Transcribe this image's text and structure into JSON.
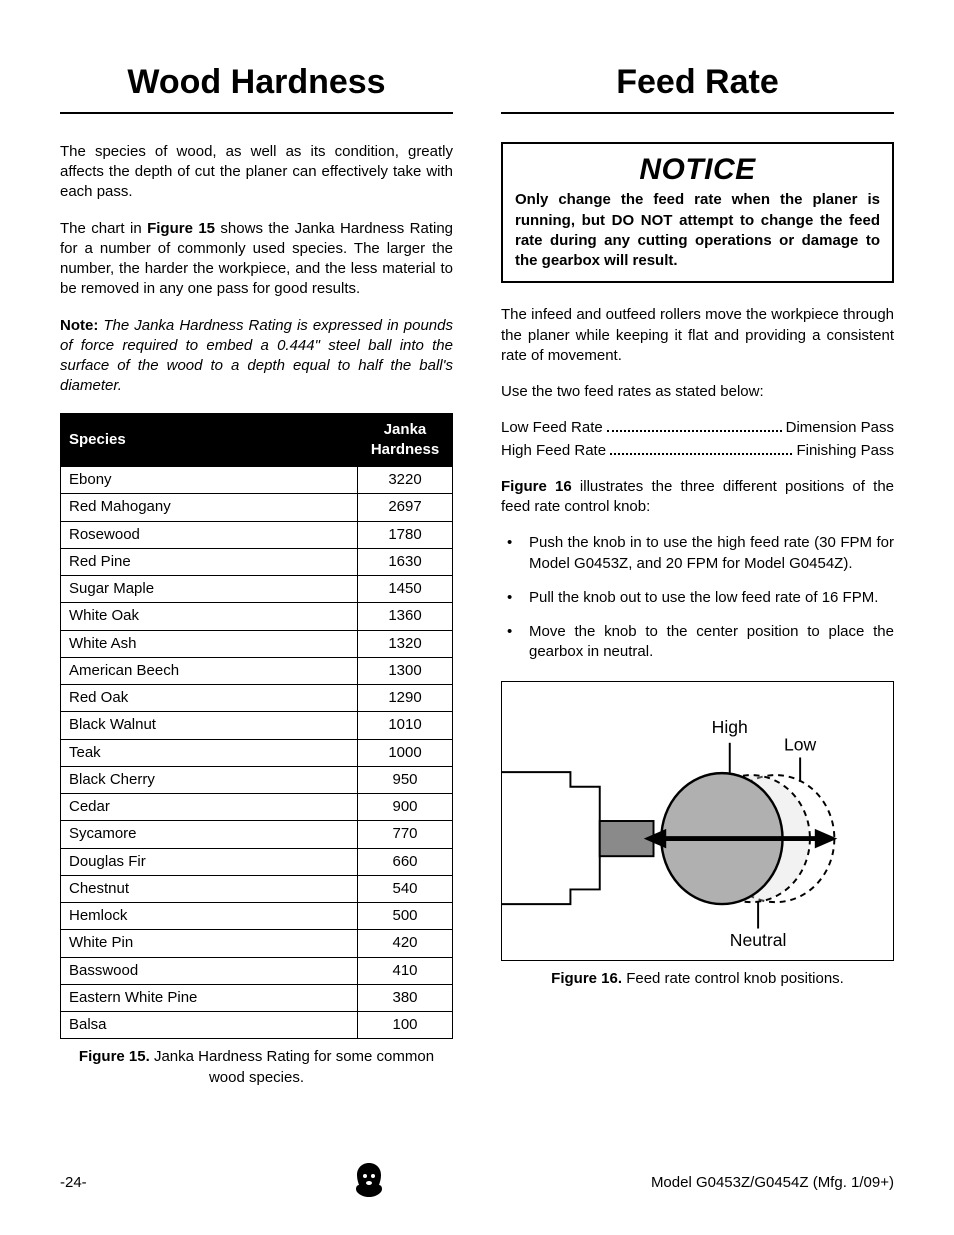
{
  "left": {
    "title": "Wood Hardness",
    "para1": "The species of wood, as well as its condition, greatly affects the depth of cut the planer can effectively take with each pass.",
    "para2_a": "The chart in ",
    "para2_b_bold": "Figure 15",
    "para2_c": " shows the Janka Hardness Rating for a number of commonly used species. The larger the number, the harder the workpiece, and the less material to be removed in any one pass for good results.",
    "note_label": "Note:",
    "note_body": " The Janka Hardness Rating is expressed in pounds of force required to embed a 0.444\" steel ball into the surface of the wood to a depth equal to half the ball's diameter.",
    "table": {
      "col1": "Species",
      "col2_l1": "Janka",
      "col2_l2": "Hardness",
      "rows": [
        {
          "s": "Ebony",
          "h": "3220"
        },
        {
          "s": "Red Mahogany",
          "h": "2697"
        },
        {
          "s": "Rosewood",
          "h": "1780"
        },
        {
          "s": "Red Pine",
          "h": "1630"
        },
        {
          "s": "Sugar Maple",
          "h": "1450"
        },
        {
          "s": "White Oak",
          "h": "1360"
        },
        {
          "s": "White Ash",
          "h": "1320"
        },
        {
          "s": "American Beech",
          "h": "1300"
        },
        {
          "s": "Red Oak",
          "h": "1290"
        },
        {
          "s": "Black Walnut",
          "h": "1010"
        },
        {
          "s": "Teak",
          "h": "1000"
        },
        {
          "s": "Black Cherry",
          "h": "950"
        },
        {
          "s": "Cedar",
          "h": "900"
        },
        {
          "s": "Sycamore",
          "h": "770"
        },
        {
          "s": "Douglas Fir",
          "h": "660"
        },
        {
          "s": "Chestnut",
          "h": "540"
        },
        {
          "s": "Hemlock",
          "h": "500"
        },
        {
          "s": "White Pin",
          "h": "420"
        },
        {
          "s": "Basswood",
          "h": "410"
        },
        {
          "s": "Eastern White Pine",
          "h": "380"
        },
        {
          "s": "Balsa",
          "h": "100"
        }
      ]
    },
    "fig15_bold": "Figure 15.",
    "fig15_rest": " Janka Hardness Rating for some common wood species."
  },
  "right": {
    "title": "Feed Rate",
    "notice_title": "NOTICE",
    "notice_body": "Only change the feed rate when the planer is running, but DO NOT attempt to change the feed rate during any cutting operations or damage to the gearbox will result.",
    "para1": "The infeed and outfeed rollers move the workpiece through the planer while keeping it flat and providing a consistent rate of movement.",
    "para2": "Use the two feed rates as stated below:",
    "rates": [
      {
        "l": "Low Feed Rate",
        "r": "Dimension Pass"
      },
      {
        "l": "High Feed Rate",
        "r": "Finishing Pass"
      }
    ],
    "para3_a_bold": "Figure 16",
    "para3_b": " illustrates the three different positions of the feed rate control knob:",
    "bullets": [
      "Push the knob in to use the high feed rate (30 FPM for Model G0453Z, and 20 FPM for Model G0454Z).",
      "Pull the knob out to use the low feed rate of 16 FPM.",
      "Move the knob to the center position to place the gearbox in neutral."
    ],
    "diagram": {
      "label_high": "High",
      "label_low": "Low",
      "label_neutral": "Neutral",
      "colors": {
        "knob_fill": "#b0b0b0",
        "shaft_fill": "#8a8a8a",
        "dashed_fill": "#d9d9d9",
        "stroke": "#000000",
        "bg": "#ffffff"
      }
    },
    "fig16_bold": "Figure 16.",
    "fig16_rest": " Feed rate control knob positions."
  },
  "footer": {
    "page": "-24-",
    "model": "Model G0453Z/G0454Z (Mfg. 1/09+)"
  }
}
